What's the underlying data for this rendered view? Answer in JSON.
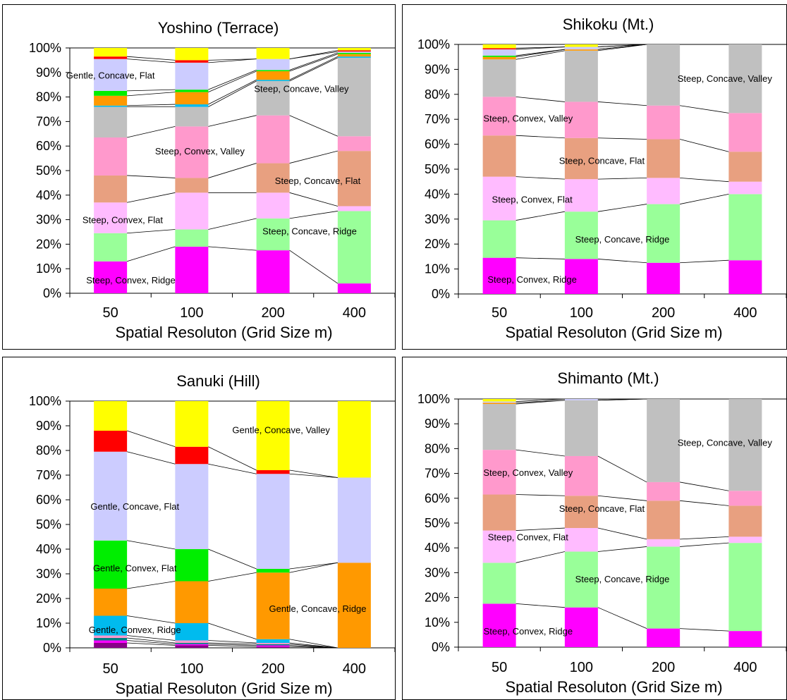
{
  "yticks": [
    "0%",
    "10%",
    "20%",
    "30%",
    "40%",
    "50%",
    "60%",
    "70%",
    "80%",
    "90%",
    "100%"
  ],
  "colors": {
    "steep_convex_ridge": "#ff00ff",
    "steep_concave_ridge": "#99ff99",
    "steep_convex_flat": "#ffbbff",
    "steep_concave_flat": "#e8a080",
    "steep_convex_valley": "#ff99cc",
    "steep_concave_valley": "#c0c0c0",
    "gentle_convex_ridge": "#00bbee",
    "gentle_concave_ridge": "#ff9900",
    "gentle_convex_flat": "#00ee00",
    "gentle_concave_flat": "#ccccff",
    "gentle_convex_valley": "#ff0000",
    "gentle_concave_valley": "#ffff00",
    "minor_dark": "#880088",
    "minor_teal": "#008080"
  },
  "chart_data": [
    {
      "type": "bar",
      "stacked": true,
      "title": "Yoshino (Terrace)",
      "xlabel": "Spatial Resoluton (Grid Size m)",
      "categories": [
        "50",
        "100",
        "200",
        "400"
      ],
      "ylim": [
        0,
        100
      ],
      "series": [
        {
          "color": "steep_convex_ridge",
          "values": [
            13,
            19,
            17.5,
            4
          ]
        },
        {
          "color": "steep_concave_ridge",
          "values": [
            11.5,
            7,
            13,
            29.5
          ]
        },
        {
          "color": "steep_convex_flat",
          "values": [
            12.5,
            15,
            10.5,
            2
          ]
        },
        {
          "color": "steep_concave_flat",
          "values": [
            11,
            6,
            12,
            22.5
          ]
        },
        {
          "color": "steep_convex_valley",
          "values": [
            15.5,
            21,
            19.5,
            6
          ]
        },
        {
          "color": "steep_concave_valley",
          "values": [
            12.5,
            8,
            14,
            32
          ]
        },
        {
          "color": "gentle_convex_ridge",
          "values": [
            0.5,
            1,
            0.5,
            0.5
          ]
        },
        {
          "color": "gentle_concave_ridge",
          "values": [
            4,
            5,
            3.5,
            1
          ]
        },
        {
          "color": "gentle_convex_flat",
          "values": [
            2,
            1,
            0.5,
            0.5
          ]
        },
        {
          "color": "gentle_concave_flat",
          "values": [
            13,
            11,
            4.5,
            0.5
          ]
        },
        {
          "color": "gentle_convex_valley",
          "values": [
            1,
            1,
            0,
            0.5
          ]
        },
        {
          "color": "gentle_concave_valley",
          "values": [
            3.5,
            5,
            4.5,
            1
          ]
        }
      ],
      "annotations": [
        {
          "text": "Gentle, Concave, Flat",
          "x": 0,
          "y": 89
        },
        {
          "text": "Steep, Concave, Valley",
          "x": 2.35,
          "y": 83.5
        },
        {
          "text": "Steep, Convex, Valley",
          "x": 1.1,
          "y": 58
        },
        {
          "text": "Steep, Concave, Flat",
          "x": 2.55,
          "y": 46
        },
        {
          "text": "Steep, Convex, Flat",
          "x": 0.15,
          "y": 30
        },
        {
          "text": "Steep, Concave, Ridge",
          "x": 2.45,
          "y": 25.5
        },
        {
          "text": "Steep, Convex, Ridge",
          "x": 0.25,
          "y": 5.5
        }
      ]
    },
    {
      "type": "bar",
      "stacked": true,
      "title": "Shikoku (Mt.)",
      "xlabel": "Spatial Resoluton (Grid Size m)",
      "categories": [
        "50",
        "100",
        "200",
        "400"
      ],
      "ylim": [
        0,
        100
      ],
      "series": [
        {
          "color": "steep_convex_ridge",
          "values": [
            14.5,
            14,
            12.5,
            13.5
          ]
        },
        {
          "color": "steep_concave_ridge",
          "values": [
            15,
            19,
            23.5,
            26.5
          ]
        },
        {
          "color": "steep_convex_flat",
          "values": [
            17.5,
            13,
            10.5,
            5
          ]
        },
        {
          "color": "steep_concave_flat",
          "values": [
            16.5,
            16.5,
            15.5,
            12
          ]
        },
        {
          "color": "steep_convex_valley",
          "values": [
            15.5,
            14.5,
            13.5,
            15.5
          ]
        },
        {
          "color": "steep_concave_valley",
          "values": [
            15,
            20.5,
            24.5,
            27.5
          ]
        },
        {
          "color": "gentle_concave_ridge",
          "values": [
            1,
            0.5,
            0,
            0
          ]
        },
        {
          "color": "gentle_convex_flat",
          "values": [
            0.5,
            0,
            0,
            0
          ]
        },
        {
          "color": "gentle_concave_flat",
          "values": [
            2.5,
            1,
            0,
            0
          ]
        },
        {
          "color": "gentle_convex_valley",
          "values": [
            0.5,
            0,
            0,
            0
          ]
        },
        {
          "color": "gentle_concave_valley",
          "values": [
            1.5,
            1,
            0,
            0
          ]
        }
      ],
      "annotations": [
        {
          "text": "Steep, Concave,  Valley",
          "x": 2.75,
          "y": 86.5
        },
        {
          "text": "Steep, Convex, Valley",
          "x": 0.35,
          "y": 70.5
        },
        {
          "text": "Steep, Concave, Flat",
          "x": 1.25,
          "y": 53.5
        },
        {
          "text": "Steep, Convex, Flat",
          "x": 0.4,
          "y": 38
        },
        {
          "text": "Steep, Concave, Ridge",
          "x": 1.5,
          "y": 22
        },
        {
          "text": "Steep, Convex, Ridge",
          "x": 0.4,
          "y": 6
        }
      ]
    },
    {
      "type": "bar",
      "stacked": true,
      "title": "Sanuki (Hill)",
      "xlabel": "Spatial Resoluton (Grid Size m)",
      "categories": [
        "50",
        "100",
        "200",
        "400"
      ],
      "ylim": [
        0,
        100
      ],
      "series": [
        {
          "color": "minor_dark",
          "values": [
            2,
            1,
            0.5,
            0
          ]
        },
        {
          "color": "steep_convex_ridge",
          "values": [
            1,
            0.5,
            0.5,
            0
          ]
        },
        {
          "color": "minor_teal",
          "values": [
            1,
            0.5,
            0.5,
            0
          ]
        },
        {
          "color": "steep_convex_valley",
          "values": [
            1,
            1,
            0.5,
            0
          ]
        },
        {
          "color": "gentle_convex_ridge",
          "values": [
            8,
            7,
            1.5,
            0
          ]
        },
        {
          "color": "gentle_concave_ridge",
          "values": [
            11,
            17,
            27,
            34.5
          ]
        },
        {
          "color": "gentle_convex_flat",
          "values": [
            19.5,
            13,
            1.5,
            0
          ]
        },
        {
          "color": "gentle_concave_flat",
          "values": [
            36,
            34.5,
            38.5,
            34.5
          ]
        },
        {
          "color": "gentle_convex_valley",
          "values": [
            8.5,
            7,
            1.5,
            0
          ]
        },
        {
          "color": "gentle_concave_valley",
          "values": [
            12,
            18.5,
            28,
            31
          ]
        }
      ],
      "annotations": [
        {
          "text": "Gentle, Concave, Valley",
          "x": 2.1,
          "y": 88.5
        },
        {
          "text": "Gentle, Concave, Flat",
          "x": 0.3,
          "y": 57.5
        },
        {
          "text": "Gentle, Convex, Flat",
          "x": 0.3,
          "y": 32.5
        },
        {
          "text": "Gentle, Concave, Ridge",
          "x": 2.55,
          "y": 16
        },
        {
          "text": "Gentle, Convex, Ridge",
          "x": 0.3,
          "y": 7.5
        }
      ]
    },
    {
      "type": "bar",
      "stacked": true,
      "title": "Shimanto (Mt.)",
      "xlabel": "Spatial Resoluton (Grid Size m)",
      "categories": [
        "50",
        "100",
        "200",
        "400"
      ],
      "ylim": [
        0,
        100
      ],
      "series": [
        {
          "color": "steep_convex_ridge",
          "values": [
            17.5,
            16,
            7.5,
            6.5
          ]
        },
        {
          "color": "steep_concave_ridge",
          "values": [
            16.5,
            22.5,
            33,
            35.5
          ]
        },
        {
          "color": "steep_convex_flat",
          "values": [
            13,
            9.5,
            3,
            2.5
          ]
        },
        {
          "color": "steep_concave_flat",
          "values": [
            14.5,
            13,
            15.5,
            12.5
          ]
        },
        {
          "color": "steep_convex_valley",
          "values": [
            18,
            16,
            7.5,
            6
          ]
        },
        {
          "color": "steep_concave_valley",
          "values": [
            18.5,
            22.5,
            33.5,
            37
          ]
        },
        {
          "color": "gentle_concave_ridge",
          "values": [
            0.5,
            0,
            0,
            0
          ]
        },
        {
          "color": "gentle_concave_flat",
          "values": [
            0.5,
            0.5,
            0,
            0
          ]
        },
        {
          "color": "gentle_concave_valley",
          "values": [
            1,
            0,
            0,
            0
          ]
        }
      ],
      "annotations": [
        {
          "text": "Steep, Concave,  Valley",
          "x": 2.75,
          "y": 82.5
        },
        {
          "text": "Steep, Convex, Valley",
          "x": 0.35,
          "y": 70.5
        },
        {
          "text": "Steep, Concave, Flat",
          "x": 1.25,
          "y": 56
        },
        {
          "text": "Steep, Convex, Flat",
          "x": 0.35,
          "y": 44.5
        },
        {
          "text": "Steep, Concave, Ridge",
          "x": 1.5,
          "y": 27.5
        },
        {
          "text": "Steep, Convex, Ridge",
          "x": 0.35,
          "y": 6.5
        }
      ]
    }
  ]
}
